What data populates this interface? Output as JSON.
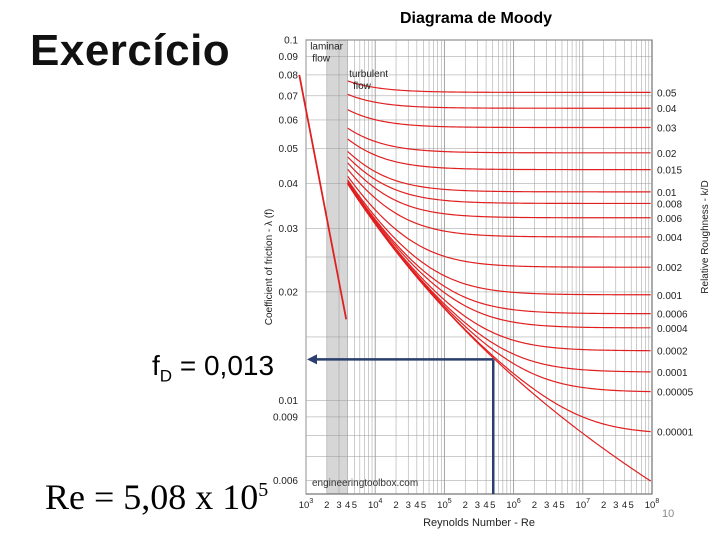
{
  "slide": {
    "title": "Exercício",
    "fd_prefix": "f",
    "fd_sub": "D",
    "fd_rest": " = 0,013",
    "re_text": "Re = 5,08 x 10",
    "re_exp": "5",
    "page_number": "10"
  },
  "chart_data": {
    "type": "line",
    "title": "Diagrama de Moody",
    "xlabel": "Reynolds Number - Re",
    "ylabel": "Coefficient of friction - λ (f)",
    "y2label": "Relative Roughness - k/D",
    "xscale": "log",
    "yscale": "log",
    "xlim": [
      1000,
      100000000
    ],
    "ylim": [
      0.0055,
      0.1
    ],
    "y_ticks": [
      "0.1",
      "0.09",
      "0.08",
      "0.07",
      "0.06",
      "0.05",
      "0.04",
      "0.03",
      "0.02",
      "0.01",
      "0.009",
      "0.006"
    ],
    "x_ticks": [
      {
        "base": "10",
        "exp": "3"
      },
      {
        "base": "2",
        "exp": ""
      },
      {
        "base": "3",
        "exp": ""
      },
      {
        "base": "4",
        "exp": ""
      },
      {
        "base": "5",
        "exp": ""
      },
      {
        "base": "10",
        "exp": "4"
      },
      {
        "base": "2",
        "exp": ""
      },
      {
        "base": "3",
        "exp": ""
      },
      {
        "base": "4",
        "exp": ""
      },
      {
        "base": "5",
        "exp": ""
      },
      {
        "base": "10",
        "exp": "5"
      },
      {
        "base": "2",
        "exp": ""
      },
      {
        "base": "3",
        "exp": ""
      },
      {
        "base": "4",
        "exp": ""
      },
      {
        "base": "5",
        "exp": ""
      },
      {
        "base": "10",
        "exp": "6"
      },
      {
        "base": "2",
        "exp": ""
      },
      {
        "base": "3",
        "exp": ""
      },
      {
        "base": "4",
        "exp": ""
      },
      {
        "base": "5",
        "exp": ""
      },
      {
        "base": "10",
        "exp": "7"
      },
      {
        "base": "2",
        "exp": ""
      },
      {
        "base": "3",
        "exp": ""
      },
      {
        "base": "4",
        "exp": ""
      },
      {
        "base": "5",
        "exp": ""
      },
      {
        "base": "10",
        "exp": "8"
      }
    ],
    "roughness_labels": [
      "0.05",
      "0.04",
      "0.03",
      "0.02",
      "0.015",
      "0.01",
      "0.008",
      "0.006",
      "0.004",
      "0.002",
      "0.001",
      "0.0006",
      "0.0004",
      "0.0002",
      "0.0001",
      "0.00005",
      "0.00001"
    ],
    "roughness_values": [
      0.05,
      0.04,
      0.03,
      0.02,
      0.015,
      0.01,
      0.008,
      0.006,
      0.004,
      0.002,
      0.001,
      0.0006,
      0.0004,
      0.0002,
      0.0001,
      5e-05,
      1e-05
    ],
    "annotations": {
      "laminar": "laminar flow",
      "turbulent": "turbulent flow",
      "watermark": "engineeringtoolbox.com"
    },
    "critical_zone": [
      2000,
      4000
    ],
    "reading": {
      "re": 508000,
      "f": 0.013
    },
    "colors": {
      "curve": "#e02020",
      "grid": "#9a9a9a",
      "reading": "#2b3f6e",
      "critical": "#c8c8c8"
    }
  }
}
